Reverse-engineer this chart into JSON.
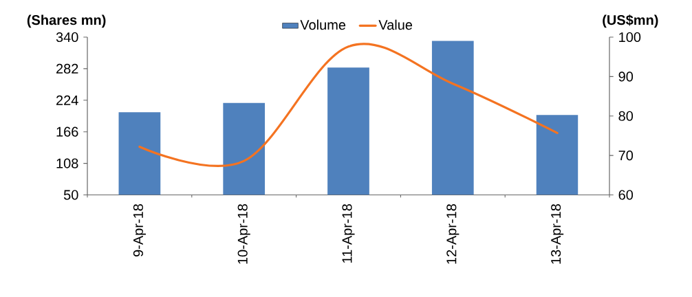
{
  "chart_data": {
    "type": "bar",
    "categories": [
      "9-Apr-18",
      "10-Apr-18",
      "11-Apr-18",
      "12-Apr-18",
      "13-Apr-18"
    ],
    "ylabel": "(Shares mn)",
    "y2label": "(US$mn)",
    "ylim": [
      50,
      340
    ],
    "yticks": [
      50,
      108,
      166,
      224,
      282,
      340
    ],
    "y2lim": [
      60,
      100
    ],
    "y2ticks": [
      60,
      70,
      80,
      90,
      100
    ],
    "legend": "top",
    "series": [
      {
        "name": "Volume",
        "color": "#4f81bd",
        "values": [
          202,
          219,
          284,
          333,
          197
        ]
      },
      {
        "name": "Value",
        "type": "line",
        "axis": "y2",
        "color": "#f47321",
        "values": [
          72.2,
          68.6,
          97.6,
          88.2,
          75.7
        ]
      }
    ]
  }
}
